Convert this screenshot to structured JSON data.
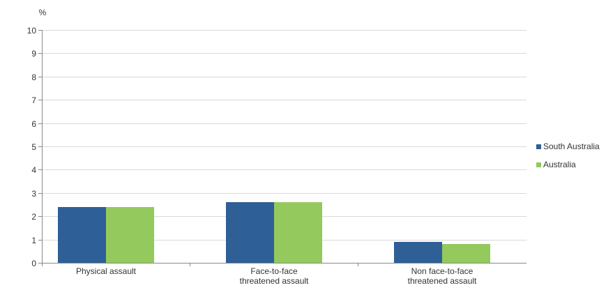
{
  "chart_data": {
    "type": "bar",
    "title": "",
    "ylabel": "%",
    "xlabel": "",
    "ylim": [
      0,
      10
    ],
    "ytick_step": 1,
    "grid": "horizontal",
    "legend_position": "right",
    "categories": [
      "Physical assault",
      "Face-to-face threatened assault",
      "Non face-to-face threatened assault"
    ],
    "category_label_lines": [
      [
        "Physical assault"
      ],
      [
        "Face-to-face",
        "threatened assault"
      ],
      [
        "Non face-to-face",
        "threatened assault"
      ]
    ],
    "series": [
      {
        "name": "South Australia",
        "color": "#2E5F96",
        "values": [
          2.4,
          2.6,
          0.9
        ]
      },
      {
        "name": "Australia",
        "color": "#94C95D",
        "values": [
          2.4,
          2.6,
          0.8
        ]
      }
    ]
  },
  "colors": {
    "gridline": "#D9D9D9",
    "axis": "#888888",
    "text": "#333333"
  }
}
